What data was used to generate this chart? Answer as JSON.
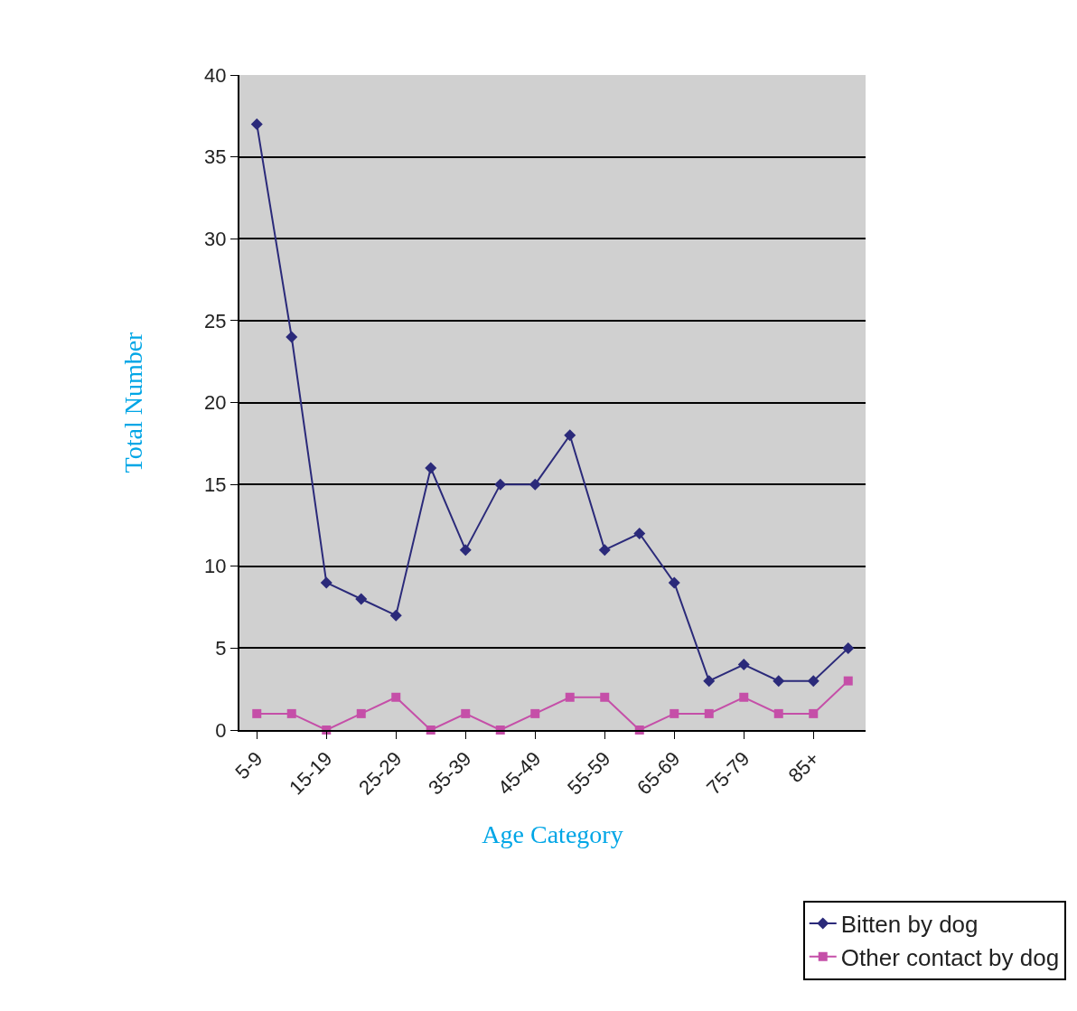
{
  "chart_data": {
    "type": "line",
    "xlabel": "Age Category",
    "ylabel": "Total Number",
    "categories": [
      "5-9",
      null,
      "15-19",
      null,
      "25-29",
      null,
      "35-39",
      null,
      "45-49",
      null,
      "55-59",
      null,
      "65-69",
      null,
      "75-79",
      null,
      "85+",
      null
    ],
    "series": [
      {
        "name": "Bitten by dog",
        "color": "#2b2a7a",
        "marker": "diamond",
        "values": [
          37,
          24,
          9,
          8,
          7,
          16,
          11,
          15,
          15,
          18,
          11,
          12,
          9,
          3,
          4,
          3,
          3,
          5
        ]
      },
      {
        "name": "Other contact by dog",
        "color": "#c54fa8",
        "marker": "square",
        "values": [
          1,
          1,
          0,
          1,
          2,
          0,
          1,
          0,
          1,
          2,
          2,
          0,
          1,
          1,
          2,
          1,
          1,
          3
        ]
      }
    ],
    "ylim": [
      0,
      40
    ],
    "yticks": [
      0,
      5,
      10,
      15,
      20,
      25,
      30,
      35,
      40
    ],
    "grid": "y",
    "legend": "bottom right",
    "line_style": "solid"
  }
}
